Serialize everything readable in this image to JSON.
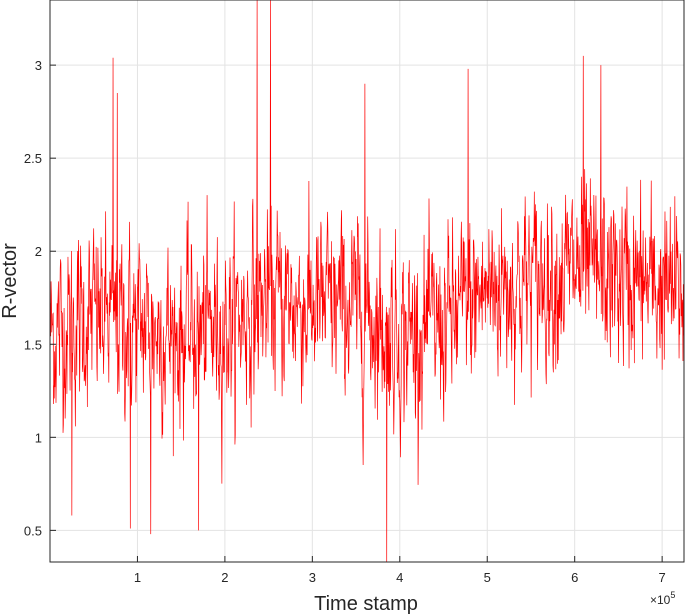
{
  "chart_data": {
    "type": "line",
    "title": "",
    "xlabel": "Time stamp",
    "ylabel": "R-vector",
    "x_exponent_label": "×10",
    "x_exponent_power": "5",
    "xlim": [
      0,
      7.25
    ],
    "ylim": [
      0.33,
      3.35
    ],
    "x_ticks": [
      1,
      2,
      3,
      4,
      5,
      6,
      7
    ],
    "x_tick_labels": [
      "1",
      "2",
      "3",
      "4",
      "5",
      "6",
      "7"
    ],
    "y_ticks": [
      0.5,
      1,
      1.5,
      2,
      2.5,
      3
    ],
    "y_tick_labels": [
      "0.5",
      "1",
      "1.5",
      "2",
      "2.5",
      "3"
    ],
    "grid": true,
    "line_color": "#ff0000",
    "series": [
      {
        "trend_x": [
          0,
          0.5,
          1.0,
          1.5,
          2.0,
          2.5,
          3.0,
          3.5,
          4.0,
          4.5,
          5.0,
          5.5,
          6.0,
          6.5,
          7.0,
          7.25
        ],
        "trend_y": [
          1.55,
          1.65,
          1.6,
          1.55,
          1.6,
          1.75,
          1.7,
          1.7,
          1.55,
          1.6,
          1.8,
          1.85,
          1.9,
          1.85,
          1.8,
          1.75
        ],
        "noise_sd": 0.28,
        "spikes": [
          {
            "x": 0.72,
            "y": 3.04
          },
          {
            "x": 0.77,
            "y": 2.85
          },
          {
            "x": 2.37,
            "y": 3.35
          },
          {
            "x": 2.52,
            "y": 3.35
          },
          {
            "x": 1.15,
            "y": 0.48
          },
          {
            "x": 0.92,
            "y": 0.51
          },
          {
            "x": 3.85,
            "y": 0.33
          },
          {
            "x": 3.6,
            "y": 2.9
          },
          {
            "x": 4.78,
            "y": 2.98
          },
          {
            "x": 6.1,
            "y": 3.05
          },
          {
            "x": 6.3,
            "y": 3.0
          },
          {
            "x": 0.25,
            "y": 0.58
          },
          {
            "x": 1.7,
            "y": 0.5
          }
        ]
      }
    ]
  }
}
